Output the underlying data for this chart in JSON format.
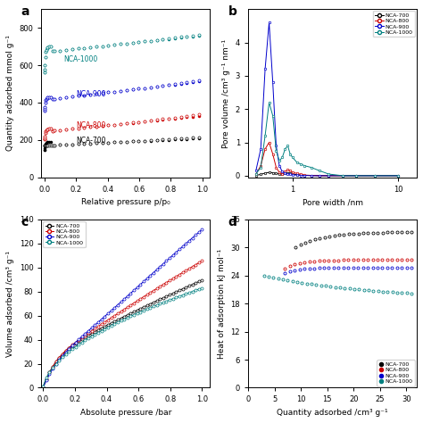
{
  "colors": {
    "NCA-700": "#000000",
    "NCA-800": "#cc0000",
    "NCA-900": "#0000cc",
    "NCA-1000": "#008080"
  },
  "panel_a": {
    "title": "a",
    "xlabel": "Relative pressure p/p₀",
    "ylabel": "Quantity adsorbed mmol g⁻¹",
    "ylim": [
      0,
      900
    ],
    "xlim": [
      -0.02,
      1.05
    ],
    "yticks": [
      0,
      200,
      400,
      600,
      800
    ],
    "xticks": [
      0.0,
      0.2,
      0.4,
      0.6,
      0.8,
      1.0
    ]
  },
  "panel_b": {
    "title": "b",
    "xlabel": "Pore width /nm",
    "ylabel": "Pore volume /cm³ g⁻¹ nm⁻¹",
    "ylim": [
      -0.05,
      5.0
    ],
    "yticks": [
      0,
      1,
      2,
      3,
      4
    ],
    "xticks_labels": [
      "1",
      "10"
    ]
  },
  "panel_c": {
    "title": "c",
    "xlabel": "Absolute pressure /bar",
    "ylabel": "Volume adsorbed /cm³ g⁻¹",
    "ylim": [
      0,
      140
    ],
    "xlim": [
      -0.01,
      1.05
    ],
    "yticks": [
      0,
      20,
      40,
      60,
      80,
      100,
      120,
      140
    ],
    "xticks": [
      0.0,
      0.2,
      0.4,
      0.6,
      0.8,
      1.0
    ]
  },
  "panel_d": {
    "title": "d",
    "xlabel": "Quantity adsorbed /cm³ g⁻¹",
    "ylabel": "Heat of adsorption kJ mol⁻¹",
    "ylim": [
      0,
      36
    ],
    "xlim": [
      0,
      32
    ],
    "yticks": [
      0,
      6,
      12,
      18,
      24,
      30,
      36
    ],
    "xticks": [
      0,
      5,
      10,
      15,
      20,
      25,
      30
    ]
  },
  "labels": [
    "NCA-700",
    "NCA-800",
    "NCA-900",
    "NCA-1000"
  ]
}
